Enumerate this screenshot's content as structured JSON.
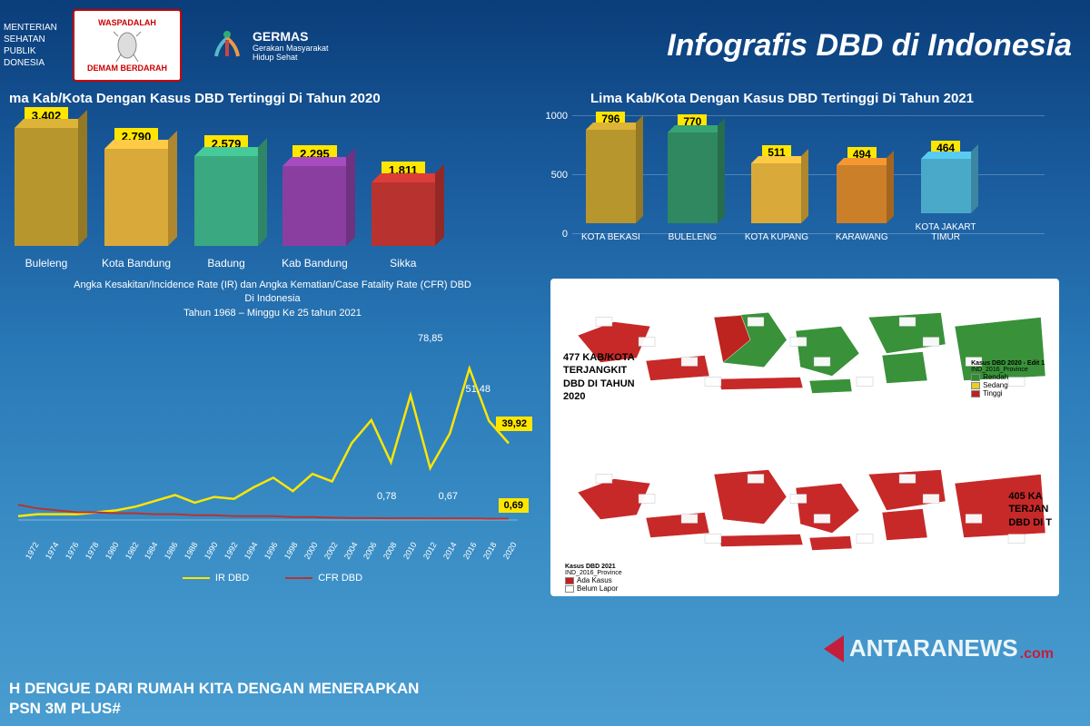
{
  "header": {
    "ministry": "MENTERIAN\nSEHATAN\nPUBLIK\nDONESIA",
    "waspadalah_top": "WASPADALAH",
    "waspadalah_bottom": "DEMAM BERDARAH",
    "germas_title": "GERMAS",
    "germas_sub": "Gerakan Masyarakat\nHidup Sehat",
    "main_title": "Infografis DBD di Indonesia"
  },
  "chart2020": {
    "title": "ma Kab/Kota Dengan Kasus DBD Tertinggi Di Tahun 2020",
    "type": "bar3d",
    "categories": [
      "Buleleng",
      "Kota Bandung",
      "Badung",
      "Kab Bandung",
      "Sikka"
    ],
    "values": [
      "3.402",
      "2.790",
      "2.579",
      "2.295",
      "1.811"
    ],
    "heights": [
      130,
      107,
      99,
      88,
      70
    ],
    "colors": [
      "#b8962e",
      "#d9a93a",
      "#3aa880",
      "#8a3fa0",
      "#b8332f"
    ],
    "label_bg": "#ffe600"
  },
  "chart2021": {
    "title": "Lima Kab/Kota Dengan Kasus DBD Tertinggi Di Tahun 2021",
    "type": "bar3d",
    "categories": [
      "KOTA BEKASI",
      "BULELENG",
      "KOTA KUPANG",
      "KARAWANG",
      "KOTA JAKART\nTIMUR"
    ],
    "values": [
      "796",
      "770",
      "511",
      "494",
      "464"
    ],
    "heights": [
      103,
      100,
      66,
      64,
      60
    ],
    "colors": [
      "#b8962e",
      "#2f8860",
      "#d9a93a",
      "#cc7f29",
      "#4aa9c9"
    ],
    "yticks": [
      0,
      500,
      1000
    ],
    "label_bg": "#ffe600"
  },
  "linechart": {
    "title_l1": "Angka Kesakitan/Incidence Rate (IR) dan Angka Kematian/Case Fatality Rate (CFR) DBD",
    "title_l2": "Di Indonesia",
    "title_l3": "Tahun 1968 – Minggu Ke 25 tahun 2021",
    "type": "line",
    "x_years": [
      "1972",
      "1974",
      "1976",
      "1978",
      "1980",
      "1982",
      "1984",
      "1986",
      "1988",
      "1990",
      "1992",
      "1994",
      "1996",
      "1998",
      "2000",
      "2002",
      "2004",
      "2006",
      "2008",
      "2010",
      "2012",
      "2014",
      "2016",
      "2018",
      "2020"
    ],
    "ir_color": "#ffe600",
    "cfr_color": "#b8332f",
    "ir_points": [
      2,
      3,
      3,
      3,
      4,
      5,
      7,
      10,
      13,
      9,
      12,
      11,
      17,
      22,
      15,
      24,
      20,
      40,
      52,
      30,
      65,
      27,
      45,
      78.85,
      51.48,
      39.92
    ],
    "cfr_points": [
      8,
      6,
      5,
      4,
      4,
      3.5,
      3.5,
      3,
      3,
      2.5,
      2.5,
      2,
      2,
      2,
      1.5,
      1.5,
      1.2,
      1,
      1,
      0.9,
      0.9,
      0.8,
      0.8,
      0.78,
      0.67,
      0.69
    ],
    "ymax": 85,
    "annotations": {
      "peak": "78,85",
      "last_top": "51,48",
      "cfr_mid": "0,78",
      "cfr_end": "0,67"
    },
    "callout_ir": "39,92",
    "callout_cfr": "0,69",
    "legend": {
      "ir": "IR DBD",
      "cfr": "CFR DBD"
    }
  },
  "maps": {
    "map1_label": "477 KAB/KOTA\nTERJANGKIT\nDBD DI TAHUN\n2020",
    "map2_label": "405 KA\nTERJAN\nDBD DI T",
    "legend1_title": "Kasus DBD 2020 - Edit 1",
    "legend1_sub": "IND_2016_Province",
    "legend1_items": [
      {
        "color": "#2e8b2e",
        "label": "Rendah"
      },
      {
        "color": "#e6d020",
        "label": "Sedang"
      },
      {
        "color": "#c41e1e",
        "label": "Tinggi"
      }
    ],
    "legend2_title": "Kasus DBD 2021",
    "legend2_sub": "IND_2016_Province",
    "legend2_items": [
      {
        "color": "#c41e1e",
        "label": "Ada Kasus"
      },
      {
        "color": "#ffffff",
        "label": "Belum Lapor"
      }
    ],
    "green": "#2e8b2e",
    "red": "#c41e1e"
  },
  "footer": "H DENGUE DARI RUMAH KITA DENGAN MENERAPKAN\nPSN 3M PLUS#",
  "watermark": {
    "text": "ANTARANEWS",
    "suffix": ".com"
  }
}
